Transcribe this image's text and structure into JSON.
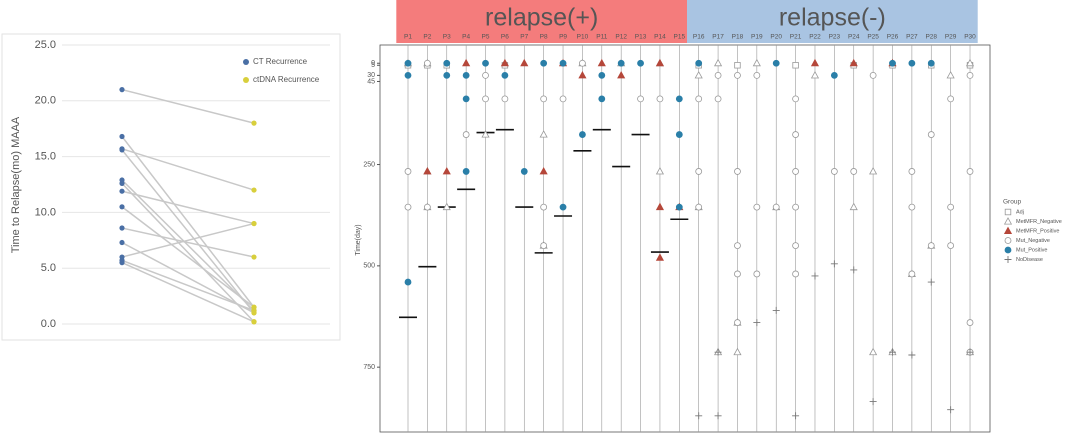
{
  "chart_data": [
    {
      "type": "slope",
      "ylabel": "Time to Relapse(mo) MAAA",
      "ylim": [
        0,
        25
      ],
      "yticks": [
        {
          "value": 0,
          "label": "0.0"
        },
        {
          "value": 5,
          "label": "5.0"
        },
        {
          "value": 10,
          "label": "10.0"
        },
        {
          "value": 15,
          "label": "15.0"
        },
        {
          "value": 20,
          "label": "20.0"
        },
        {
          "value": 25,
          "label": "25.0"
        }
      ],
      "grid": true,
      "line_color": "#c8c8c8",
      "series": [
        {
          "name": "CT Recurrence",
          "color": "#4a6fa5",
          "values": [
            21,
            16.8,
            15.7,
            15.6,
            12.9,
            12.6,
            11.9,
            10.5,
            8.6,
            7.3,
            6.0,
            5.7,
            5.5
          ]
        },
        {
          "name": "ctDNA Recurrence",
          "color": "#d8cf3c",
          "values": [
            18,
            1.5,
            12,
            1.0,
            1.2,
            0.2,
            9.0,
            1.5,
            6.0,
            1.0,
            9.0,
            1.2,
            0.2
          ]
        }
      ]
    },
    {
      "type": "dot",
      "ylabel": "Time(day)",
      "legend_title": "Group",
      "ylim": [
        -45,
        910
      ],
      "yticks": [
        0,
        5,
        30,
        45,
        250,
        500,
        750
      ],
      "categories": [
        "P1",
        "P2",
        "P3",
        "P4",
        "P5",
        "P6",
        "P7",
        "P8",
        "P9",
        "P10",
        "P11",
        "P12",
        "P13",
        "P14",
        "P15",
        "P16",
        "P17",
        "P18",
        "P19",
        "P20",
        "P21",
        "P22",
        "P23",
        "P24",
        "P25",
        "P26",
        "P27",
        "P28",
        "P29",
        "P30"
      ],
      "groups": [
        {
          "label": "relapse(+)",
          "color": "#f47c7c"
        },
        {
          "label": "relapse(-)",
          "color": "#a9c4e2"
        }
      ],
      "relapse_days": [
        627,
        502,
        355,
        311,
        171,
        164,
        355,
        468,
        377,
        216,
        164,
        255,
        176,
        466,
        385
      ],
      "series": [
        {
          "name": "Adj",
          "marker": "square",
          "filled": false,
          "color": "#999999",
          "x": [
            "P1",
            "P2",
            "P3",
            "P6",
            "P16",
            "P18",
            "P21",
            "P24",
            "P26",
            "P28",
            "P30"
          ],
          "values": [
            5,
            5,
            5,
            5,
            5,
            5,
            5,
            5,
            5,
            5,
            5
          ]
        },
        {
          "name": "MetMFR_Negative",
          "marker": "triangle",
          "filled": false,
          "color": "#999999",
          "x": [
            "P1",
            "P2",
            "P2",
            "P2",
            "P3",
            "P5",
            "P8",
            "P8",
            "P10",
            "P12",
            "P14",
            "P14",
            "P16",
            "P16",
            "P17",
            "P17",
            "P18",
            "P18",
            "P19",
            "P20",
            "P22",
            "P24",
            "P25",
            "P25",
            "P26",
            "P27",
            "P28",
            "P30",
            "P30",
            "P29"
          ],
          "values": [
            0,
            0,
            267,
            355,
            355,
            176,
            176,
            450,
            0,
            0,
            0,
            267,
            30,
            355,
            0,
            713,
            713,
            640,
            0,
            355,
            30,
            355,
            267,
            713,
            713,
            520,
            450,
            0,
            713,
            30
          ]
        },
        {
          "name": "MetMFR_Positive",
          "marker": "triangle",
          "filled": true,
          "color": "#b5473a",
          "x": [
            "P2",
            "P3",
            "P4",
            "P6",
            "P7",
            "P8",
            "P9",
            "P10",
            "P11",
            "P12",
            "P14",
            "P14",
            "P14",
            "P15",
            "P22",
            "P24",
            "P26"
          ],
          "values": [
            267,
            267,
            0,
            0,
            0,
            267,
            0,
            30,
            0,
            30,
            0,
            355,
            480,
            355,
            0,
            0,
            0
          ]
        },
        {
          "name": "Mut_Negative",
          "marker": "circle",
          "filled": false,
          "color": "#999999",
          "x": [
            "P2",
            "P5",
            "P4",
            "P5",
            "P6",
            "P8",
            "P9",
            "P8",
            "P8",
            "P1",
            "P1",
            "P2",
            "P10",
            "P13",
            "P14",
            "P16",
            "P16",
            "P16",
            "P17",
            "P18",
            "P18",
            "P18",
            "P19",
            "P19",
            "P20",
            "P21",
            "P21",
            "P21",
            "P21",
            "P21",
            "P21",
            "P23",
            "P24",
            "P27",
            "P27",
            "P27",
            "P28",
            "P28",
            "P29",
            "P29",
            "P29",
            "P30",
            "P30",
            "P30",
            "P18",
            "P25",
            "P30",
            "P19",
            "P17",
            "P18"
          ],
          "values": [
            0,
            30,
            176,
            88,
            88,
            88,
            88,
            355,
            450,
            267,
            355,
            355,
            0,
            88,
            88,
            88,
            267,
            355,
            88,
            267,
            450,
            520,
            355,
            520,
            355,
            88,
            176,
            267,
            355,
            450,
            520,
            267,
            267,
            267,
            355,
            520,
            176,
            450,
            88,
            355,
            450,
            267,
            640,
            713,
            640,
            30,
            30,
            30,
            30,
            30
          ]
        },
        {
          "name": "Mut_Positive",
          "marker": "circle",
          "filled": true,
          "color": "#2a7fa8",
          "x": [
            "P1",
            "P1",
            "P1",
            "P3",
            "P3",
            "P4",
            "P4",
            "P4",
            "P5",
            "P6",
            "P7",
            "P8",
            "P9",
            "P9",
            "P10",
            "P11",
            "P11",
            "P12",
            "P13",
            "P15",
            "P15",
            "P15",
            "P16",
            "P20",
            "P23",
            "P26",
            "P27",
            "P28"
          ],
          "values": [
            0,
            30,
            540,
            0,
            30,
            30,
            88,
            267,
            0,
            30,
            267,
            0,
            0,
            355,
            176,
            30,
            88,
            0,
            0,
            88,
            176,
            355,
            0,
            0,
            30,
            0,
            0,
            0
          ]
        },
        {
          "name": "NoDisease",
          "marker": "plus",
          "filled": false,
          "color": "#777777",
          "x": [
            "P16",
            "P17",
            "P17",
            "P19",
            "P20",
            "P21",
            "P22",
            "P23",
            "P24",
            "P25",
            "P26",
            "P27",
            "P28",
            "P29",
            "P30"
          ],
          "values": [
            870,
            870,
            713,
            640,
            610,
            870,
            525,
            495,
            510,
            835,
            713,
            720,
            540,
            855,
            713
          ]
        }
      ]
    }
  ]
}
